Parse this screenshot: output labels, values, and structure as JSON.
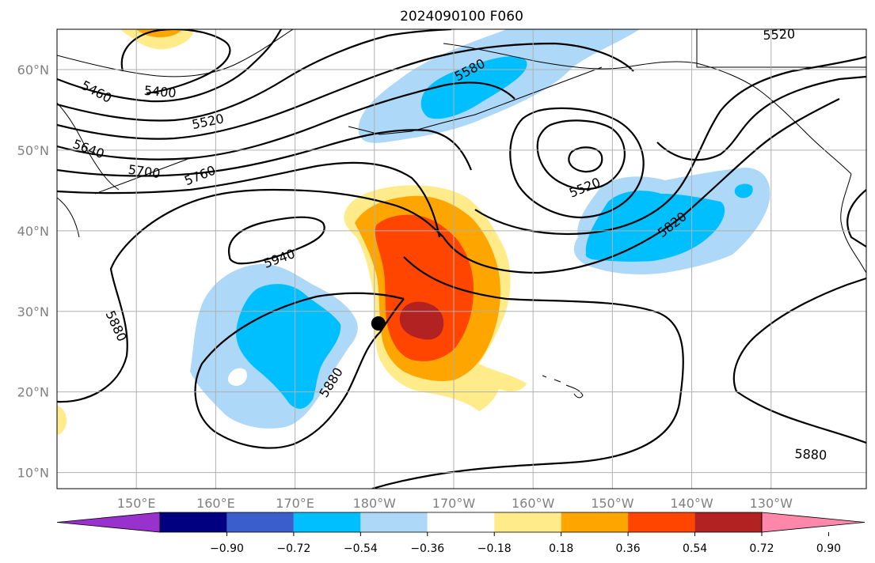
{
  "title": "2024090100 F060",
  "colors": {
    "background": "#ffffff",
    "grid": "#b0b0b0",
    "contour": "#000000",
    "coast": "#000000",
    "neg_purple": "#9932cc",
    "neg_navy": "#000080",
    "neg_royal": "#3a5fcd",
    "neg_cyan": "#00bfff",
    "neg_light": "#add8f8",
    "neutral": "#ffffff",
    "pos_yellow": "#ffeb8a",
    "pos_orange": "#ffa500",
    "pos_redorange": "#ff4500",
    "pos_brick": "#b22222",
    "pos_pink": "#ff88aa"
  },
  "map": {
    "lon_range": [
      140,
      242
    ],
    "lat_range": [
      8,
      65
    ],
    "lon_ticks": [
      {
        "value": 150,
        "label": "150°E"
      },
      {
        "value": 160,
        "label": "160°E"
      },
      {
        "value": 170,
        "label": "170°E"
      },
      {
        "value": 180,
        "label": "180°W"
      },
      {
        "value": 190,
        "label": "170°W"
      },
      {
        "value": 200,
        "label": "160°W"
      },
      {
        "value": 210,
        "label": "150°W"
      },
      {
        "value": 220,
        "label": "140°W"
      },
      {
        "value": 230,
        "label": "130°W"
      }
    ],
    "lat_ticks": [
      {
        "value": 10,
        "label": "10°N"
      },
      {
        "value": 20,
        "label": "20°N"
      },
      {
        "value": 30,
        "label": "30°N"
      },
      {
        "value": 40,
        "label": "40°N"
      },
      {
        "value": 50,
        "label": "50°N"
      },
      {
        "value": 60,
        "label": "60°N"
      }
    ],
    "grid": true,
    "marker": {
      "lon": 180.5,
      "lat": 28.5,
      "shape": "filled-circle"
    },
    "contour_labels": [
      {
        "text": "5400",
        "lon": 153,
        "lat": 57.3,
        "angle": 5
      },
      {
        "text": "5460",
        "lon": 145,
        "lat": 57.3,
        "angle": 28
      },
      {
        "text": "5520",
        "lon": 159,
        "lat": 53.6,
        "angle": -12
      },
      {
        "text": "5580",
        "lon": 192,
        "lat": 60,
        "angle": -28
      },
      {
        "text": "5520",
        "lon": 231,
        "lat": 64.4,
        "angle": -3
      },
      {
        "text": "5640",
        "lon": 144,
        "lat": 50.2,
        "angle": 20
      },
      {
        "text": "5700",
        "lon": 151,
        "lat": 47.4,
        "angle": 8
      },
      {
        "text": "5760",
        "lon": 158,
        "lat": 46.9,
        "angle": -22
      },
      {
        "text": "5520",
        "lon": 206.5,
        "lat": 45.4,
        "angle": -22
      },
      {
        "text": "5820",
        "lon": 217.5,
        "lat": 40.8,
        "angle": -38
      },
      {
        "text": "5940",
        "lon": 168,
        "lat": 36.6,
        "angle": -20
      },
      {
        "text": "5880",
        "lon": 147.5,
        "lat": 28.2,
        "angle": 65
      },
      {
        "text": "5880",
        "lon": 174.5,
        "lat": 21.2,
        "angle": -58
      },
      {
        "text": "5880",
        "lon": 235,
        "lat": 12.3,
        "angle": 3
      }
    ]
  },
  "colorbar": {
    "tick_labels": [
      "−0.90",
      "−0.72",
      "−0.54",
      "−0.36",
      "−0.18",
      "0.18",
      "0.36",
      "0.54",
      "0.72",
      "0.90"
    ],
    "segments": [
      "neg_purple",
      "neg_navy",
      "neg_royal",
      "neg_cyan",
      "neg_light",
      "neutral",
      "pos_yellow",
      "pos_orange",
      "pos_redorange",
      "pos_brick",
      "pos_pink"
    ]
  }
}
